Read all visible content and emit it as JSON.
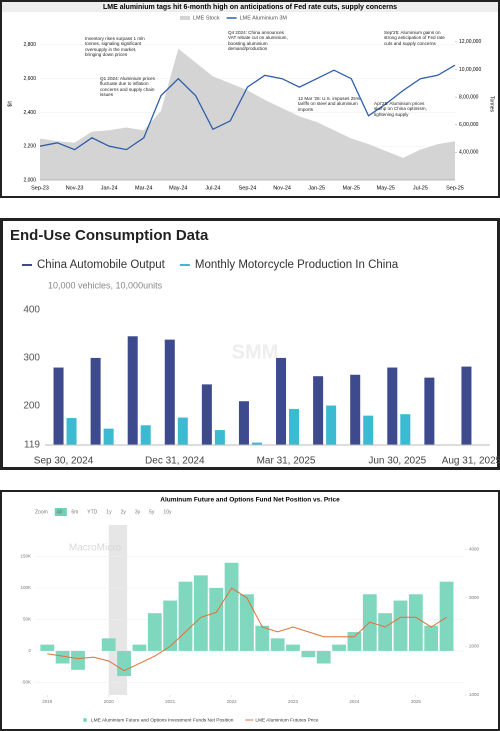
{
  "chart_data": [
    {
      "type": "line",
      "title": "LME aluminium tags hit 6-month high on anticipations of Fed rate cuts, supply concerns",
      "y_label": "$/t",
      "y2_label": "Tonnes",
      "categories": [
        "Sep-23",
        null,
        "Nov-23",
        null,
        "Jan-24",
        null,
        "Mar-24",
        null,
        "May-24",
        null,
        "Jul-24",
        null,
        "Sep-24",
        null,
        "Nov-24",
        null,
        "Jan-25",
        null,
        "Mar-25",
        null,
        "May-25",
        null,
        "Jul-25",
        null,
        "Sep-25"
      ],
      "series": [
        {
          "name": "LME Stock",
          "color": "#d4d4d4",
          "axis": "y2",
          "kind": "area",
          "values": [
            500000,
            480000,
            470000,
            550000,
            560000,
            580000,
            560000,
            700000,
            1150000,
            1050000,
            950000,
            900000,
            850000,
            780000,
            720000,
            660000,
            620000,
            560000,
            500000,
            460000,
            410000,
            360000,
            420000,
            460000,
            480000
          ]
        },
        {
          "name": "LME Aluminium 3M",
          "color": "#2f5fa8",
          "kind": "line",
          "values": [
            2200,
            2220,
            2180,
            2250,
            2200,
            2180,
            2250,
            2500,
            2600,
            2500,
            2300,
            2350,
            2550,
            2620,
            2600,
            2550,
            2600,
            2650,
            2600,
            2380,
            2450,
            2530,
            2600,
            2620,
            2680
          ]
        }
      ],
      "ylim": [
        2000,
        2900
      ],
      "yticks": [
        {
          "value": 2000,
          "label": "2,000"
        },
        {
          "value": 2200,
          "label": "2,200"
        },
        {
          "value": 2400,
          "label": "2,400"
        },
        {
          "value": 2600,
          "label": "2,600"
        },
        {
          "value": 2800,
          "label": "2,800"
        }
      ],
      "y2lim": [
        200000,
        1300000
      ],
      "y2ticks": [
        {
          "value": 400000,
          "label": "4,00,000"
        },
        {
          "value": 600000,
          "label": "6,00,000"
        },
        {
          "value": 800000,
          "label": "8,00,000"
        },
        {
          "value": 1000000,
          "label": "10,00,000"
        },
        {
          "value": 1200000,
          "label": "12,00,000"
        }
      ],
      "annotations": [
        "Inventory rises surpass 1 mln tonnes, signaling significant oversupply in the market, bringing down prices",
        "Q1 2024: Aluminium prices fluctuate due to inflation concerns and supply chain issues",
        "Q4 2024: China announces VAT rebate cut on aluminium, boosting aluminium demand/production",
        "12 Mar '25: U.S. imposes 25% tariffs on steel and aluminium imports",
        "Sep'25: Aluminium gains on strong anticipation of Fed rate cuts and supply concerns",
        "Apr'25: Aluminium prices slump on China optimism, tightening supply"
      ]
    },
    {
      "type": "bar",
      "title": "End-Use Consumption Data",
      "unit": "10,000 vehicles,  10,000units",
      "watermark": "SMM",
      "categories": [
        "Sep 30, 2024",
        null,
        null,
        "Dec 31, 2024",
        null,
        null,
        "Mar 31, 2025",
        null,
        null,
        "Jun 30, 2025",
        null,
        "Aug 31, 2025"
      ],
      "series": [
        {
          "name": "China Automobile Output",
          "color": "#3d4a8e",
          "values": [
            280,
            300,
            345,
            338,
            245,
            210,
            300,
            262,
            265,
            280,
            259,
            282
          ]
        },
        {
          "name": "Monthly Motorcycle Production In China",
          "color": "#3bbad2",
          "values": [
            175,
            153,
            160,
            176,
            150,
            124,
            194,
            201,
            180,
            183,
            null,
            null
          ]
        }
      ],
      "ylim": [
        119,
        410
      ],
      "yticks": [
        119,
        200,
        300,
        400
      ],
      "grid": false
    },
    {
      "type": "combo",
      "title": "Aluminum Future and Options Fund Net Position vs. Price",
      "watermark": "MacroMicro",
      "zoom_buttons": [
        "Zoom",
        "All",
        "6m",
        "YTD",
        "1y",
        "2y",
        "3y",
        "5y",
        "10y"
      ],
      "x": [
        2019,
        2019.25,
        2019.5,
        2019.75,
        2020,
        2020.25,
        2020.5,
        2020.75,
        2021,
        2021.25,
        2021.5,
        2021.75,
        2022,
        2022.25,
        2022.5,
        2022.75,
        2023,
        2023.25,
        2023.5,
        2023.75,
        2024,
        2024.25,
        2024.5,
        2024.75,
        2025,
        2025.25,
        2025.5
      ],
      "series": [
        {
          "name": "LME Aluminium Future and Options Investment Funds Net Position",
          "color": "#7fd8bd",
          "kind": "bar",
          "values": [
            10000,
            -20000,
            -30000,
            0,
            20000,
            -40000,
            10000,
            60000,
            80000,
            110000,
            120000,
            100000,
            140000,
            90000,
            40000,
            20000,
            10000,
            -10000,
            -20000,
            10000,
            30000,
            90000,
            60000,
            80000,
            90000,
            40000,
            110000
          ]
        },
        {
          "name": "LME Aluminium Futures Price",
          "color": "#e0703c",
          "kind": "line",
          "axis": "y2",
          "values": [
            1850,
            1800,
            1750,
            1780,
            1700,
            1500,
            1650,
            1800,
            2000,
            2300,
            2600,
            2700,
            3200,
            3000,
            2400,
            2300,
            2400,
            2300,
            2200,
            2200,
            2200,
            2500,
            2400,
            2600,
            2600,
            2400,
            2600
          ]
        }
      ],
      "xlim": [
        2018.8,
        2025.8
      ],
      "xticks": [
        2019,
        2020,
        2021,
        2022,
        2023,
        2024,
        2025
      ],
      "ylim": [
        -70000,
        200000
      ],
      "yticks": [
        {
          "value": -50000,
          "label": "-50K"
        },
        {
          "value": 0,
          "label": "0"
        },
        {
          "value": 50000,
          "label": "50K"
        },
        {
          "value": 100000,
          "label": "100K"
        },
        {
          "value": 150000,
          "label": "150K"
        }
      ],
      "y2lim": [
        1000,
        4500
      ],
      "y2ticks": [
        1000,
        2000,
        3000,
        4000
      ],
      "grid": true
    }
  ]
}
